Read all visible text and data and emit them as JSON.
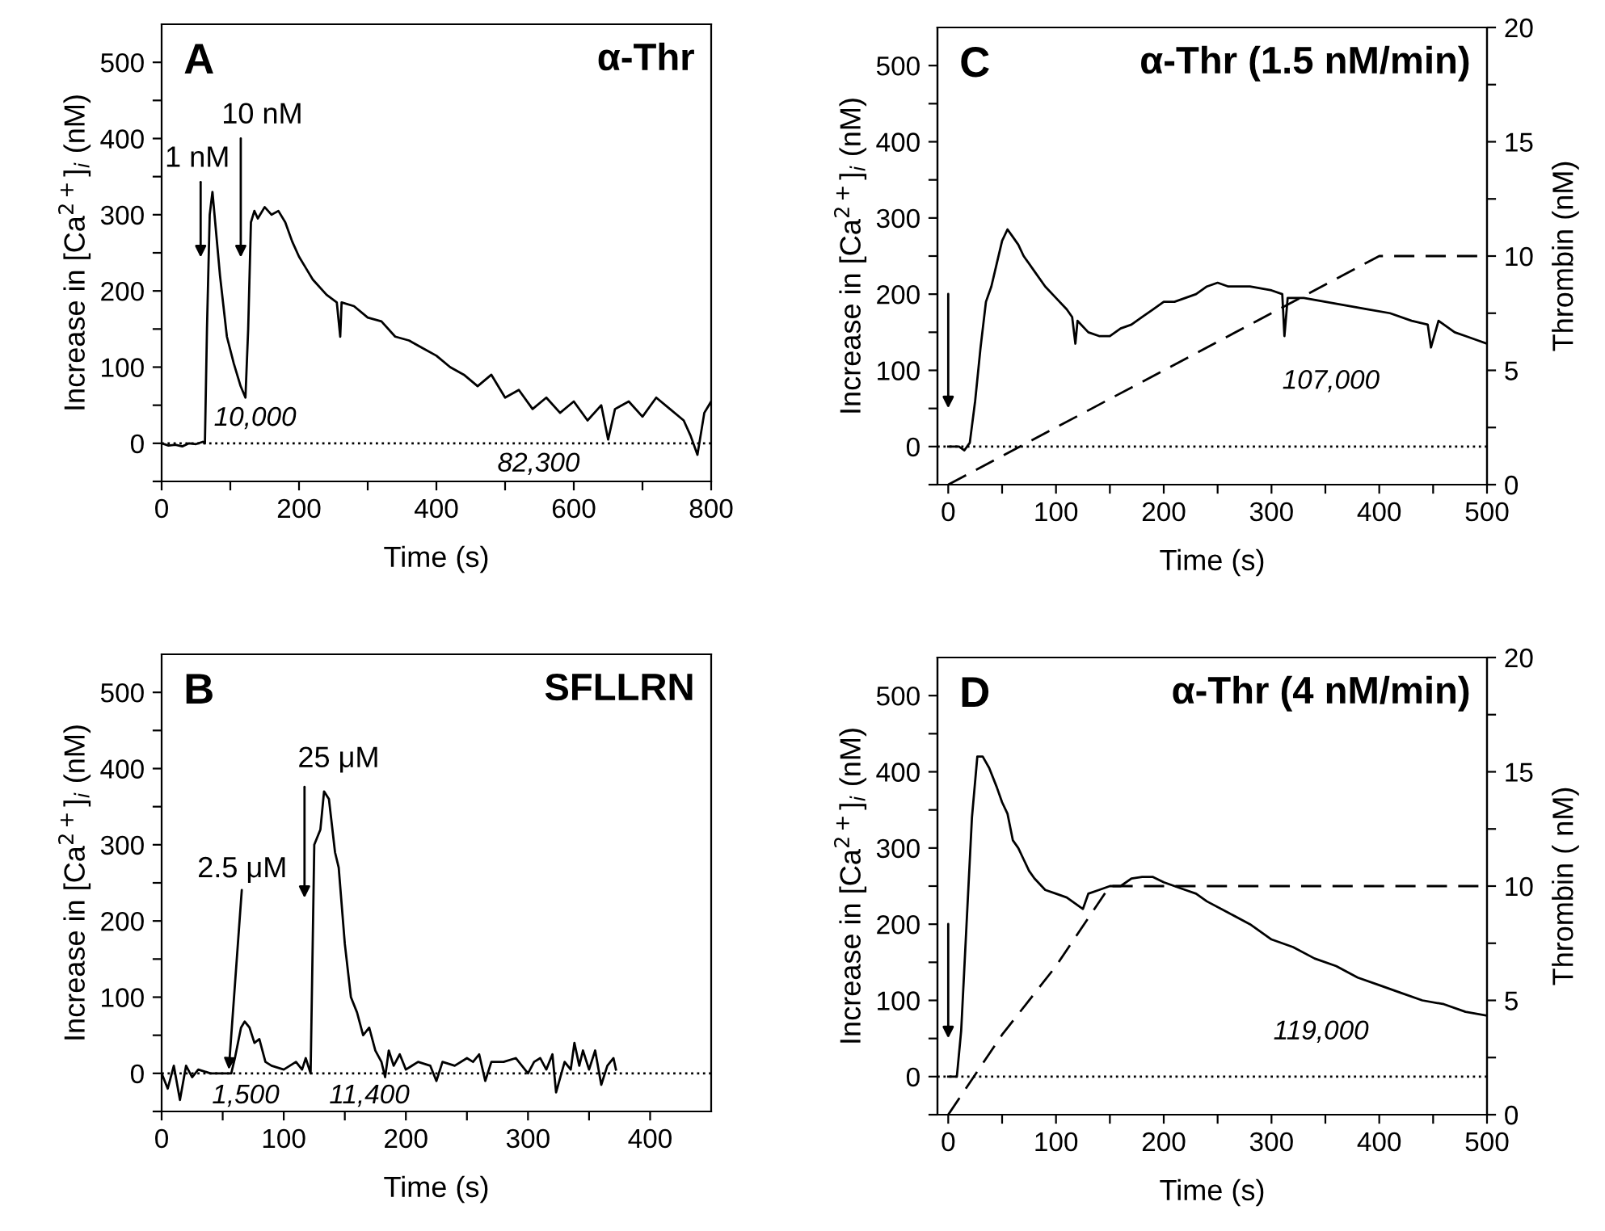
{
  "chart_data": [
    {
      "type": "line",
      "title": "α-Thr",
      "xlabel": "Time (s)",
      "ylabel": "Increase in [Ca$^{2+}$]$_{i}$ (nM)",
      "xlim": [
        0,
        800
      ],
      "xticks": [
        0,
        {
          "value": 100,
          "label": null
        },
        200,
        {
          "value": 300,
          "label": null
        },
        400,
        {
          "value": 500,
          "label": null
        },
        600,
        {
          "value": 700,
          "label": null
        },
        800
      ],
      "ylim": [
        -50,
        550
      ],
      "yticks": [
        {
          "value": -50,
          "label": null
        },
        0,
        {
          "value": 50,
          "label": null
        },
        100,
        {
          "value": 150,
          "label": null
        },
        200,
        {
          "value": 250,
          "label": null
        },
        300,
        {
          "value": 350,
          "label": null
        },
        400,
        {
          "value": 450,
          "label": null
        },
        500
      ],
      "grid": false,
      "ref_lines": [
        {
          "axis": "y",
          "value": 0,
          "line_style": "dotted",
          "color": "#000000"
        }
      ],
      "series": [
        {
          "color": "#000000",
          "line_style": "solid",
          "x": [
            0,
            10,
            20,
            30,
            40,
            50,
            60,
            63,
            66,
            70,
            74,
            78,
            85,
            95,
            105,
            115,
            122,
            126,
            130,
            135,
            140,
            150,
            160,
            170,
            180,
            190,
            200,
            210,
            220,
            240,
            255,
            260,
            262,
            280,
            300,
            320,
            340,
            360,
            380,
            400,
            420,
            440,
            460,
            480,
            500,
            520,
            540,
            560,
            580,
            600,
            620,
            640,
            650,
            660,
            680,
            700,
            720,
            740,
            760,
            770,
            780,
            790,
            800
          ],
          "values": [
            0,
            -3,
            -2,
            -4,
            0,
            -1,
            2,
            0,
            150,
            300,
            330,
            290,
            220,
            140,
            105,
            75,
            60,
            150,
            290,
            305,
            295,
            310,
            300,
            305,
            290,
            265,
            245,
            230,
            215,
            195,
            185,
            140,
            185,
            180,
            165,
            160,
            140,
            135,
            125,
            115,
            100,
            90,
            75,
            90,
            60,
            70,
            45,
            60,
            40,
            55,
            30,
            50,
            5,
            45,
            55,
            35,
            60,
            45,
            30,
            10,
            -15,
            40,
            55
          ]
        }
      ],
      "annotations": [
        "A",
        "1 nM",
        "10 nM",
        "10,000",
        "82,300"
      ]
    },
    {
      "type": "line",
      "title": "α-Thr (1.5 nM/min)",
      "xlabel": "Time (s)",
      "ylabel": "Increase in [Ca$^{2+}$]$_{i}$ (nM)",
      "y2label": "Thrombin (nM)",
      "xlim": [
        -10,
        500
      ],
      "xticks": [
        0,
        {
          "value": 50,
          "label": null
        },
        100,
        {
          "value": 150,
          "label": null
        },
        200,
        {
          "value": 250,
          "label": null
        },
        300,
        {
          "value": 350,
          "label": null
        },
        400,
        {
          "value": 450,
          "label": null
        },
        500
      ],
      "ylim": [
        -50,
        550
      ],
      "yticks": [
        {
          "value": -50,
          "label": null
        },
        0,
        {
          "value": 50,
          "label": null
        },
        100,
        {
          "value": 150,
          "label": null
        },
        200,
        {
          "value": 250,
          "label": null
        },
        300,
        {
          "value": 350,
          "label": null
        },
        400,
        {
          "value": 450,
          "label": null
        },
        500
      ],
      "y2lim": [
        0,
        20
      ],
      "y2ticks": [
        0,
        {
          "value": 2.5,
          "label": null
        },
        5,
        {
          "value": 7.5,
          "label": null
        },
        10,
        {
          "value": 12.5,
          "label": null
        },
        15,
        {
          "value": 17.5,
          "label": null
        },
        20
      ],
      "grid": false,
      "ref_lines": [
        {
          "axis": "y",
          "value": 0,
          "line_style": "dotted",
          "color": "#000000"
        }
      ],
      "series": [
        {
          "color": "#000000",
          "line_style": "solid",
          "x": [
            0,
            10,
            15,
            20,
            25,
            30,
            35,
            40,
            45,
            50,
            55,
            60,
            65,
            70,
            80,
            90,
            100,
            110,
            115,
            118,
            120,
            130,
            140,
            150,
            160,
            170,
            180,
            190,
            200,
            210,
            220,
            230,
            240,
            250,
            260,
            280,
            300,
            310,
            312,
            315,
            330,
            350,
            370,
            390,
            410,
            430,
            445,
            448,
            455,
            470,
            480,
            490,
            500
          ],
          "values": [
            0,
            0,
            -5,
            5,
            60,
            130,
            190,
            210,
            240,
            270,
            285,
            275,
            265,
            250,
            230,
            210,
            195,
            180,
            170,
            135,
            165,
            150,
            145,
            145,
            155,
            160,
            170,
            180,
            190,
            190,
            195,
            200,
            210,
            215,
            210,
            210,
            205,
            200,
            145,
            195,
            195,
            190,
            185,
            180,
            175,
            165,
            160,
            130,
            165,
            150,
            145,
            140,
            135
          ]
        },
        {
          "color": "#000000",
          "line_style": "dashed",
          "axis": "y2",
          "x": [
            0,
            400,
            500
          ],
          "values": [
            0,
            10,
            10
          ]
        }
      ],
      "annotations": [
        "C",
        "107,000"
      ]
    },
    {
      "type": "line",
      "title": "SFLLRN",
      "xlabel": "Time (s)",
      "ylabel": "Increase in [Ca$^{2+}$]$_{i}$ (nM)",
      "xlim": [
        0,
        450
      ],
      "xticks": [
        0,
        {
          "value": 50,
          "label": null
        },
        100,
        {
          "value": 150,
          "label": null
        },
        200,
        {
          "value": 250,
          "label": null
        },
        300,
        {
          "value": 350,
          "label": null
        },
        400
      ],
      "ylim": [
        -50,
        550
      ],
      "yticks": [
        {
          "value": -50,
          "label": null
        },
        0,
        {
          "value": 50,
          "label": null
        },
        100,
        {
          "value": 150,
          "label": null
        },
        200,
        {
          "value": 250,
          "label": null
        },
        300,
        {
          "value": 350,
          "label": null
        },
        400,
        {
          "value": 450,
          "label": null
        },
        500
      ],
      "grid": false,
      "ref_lines": [
        {
          "axis": "y",
          "value": 0,
          "line_style": "dotted",
          "color": "#000000"
        }
      ],
      "series": [
        {
          "color": "#000000",
          "line_style": "solid",
          "x": [
            0,
            5,
            10,
            15,
            20,
            25,
            30,
            40,
            50,
            57,
            60,
            65,
            68,
            72,
            76,
            80,
            85,
            90,
            100,
            110,
            115,
            118,
            122,
            125,
            130,
            133,
            137,
            142,
            145,
            150,
            155,
            160,
            165,
            170,
            175,
            180,
            183,
            186,
            190,
            195,
            200,
            210,
            220,
            225,
            230,
            240,
            250,
            255,
            260,
            265,
            270,
            280,
            290,
            300,
            305,
            310,
            315,
            320,
            323,
            330,
            335,
            338,
            342,
            345,
            350,
            355,
            360,
            365,
            370,
            372
          ],
          "values": [
            0,
            -20,
            10,
            -35,
            10,
            -5,
            5,
            0,
            0,
            0,
            20,
            60,
            68,
            60,
            40,
            45,
            15,
            10,
            5,
            15,
            5,
            20,
            0,
            300,
            320,
            370,
            360,
            290,
            270,
            170,
            100,
            80,
            50,
            60,
            30,
            15,
            -5,
            30,
            10,
            25,
            5,
            15,
            10,
            -10,
            15,
            10,
            20,
            15,
            25,
            -10,
            15,
            15,
            20,
            0,
            15,
            20,
            5,
            25,
            -25,
            15,
            5,
            40,
            10,
            30,
            5,
            30,
            -15,
            10,
            20,
            5
          ]
        }
      ],
      "annotations": [
        "B",
        {
          "text": "2.5 μM",
          "x": 55,
          "y": 5
        },
        "25 μM",
        "1,500",
        "11,400"
      ]
    },
    {
      "type": "line",
      "title": "α-Thr (4 nM/min)",
      "xlabel": "Time (s)",
      "ylabel": "Increase in [Ca$^{2+}$]$_{i}$ (nM)",
      "y2label": "Thrombin ( nM)",
      "xlim": [
        -10,
        500
      ],
      "xticks": [
        0,
        {
          "value": 50,
          "label": null
        },
        100,
        {
          "value": 150,
          "label": null
        },
        200,
        {
          "value": 250,
          "label": null
        },
        300,
        {
          "value": 350,
          "label": null
        },
        400,
        {
          "value": 450,
          "label": null
        },
        500
      ],
      "ylim": [
        -50,
        550
      ],
      "yticks": [
        {
          "value": -50,
          "label": null
        },
        0,
        {
          "value": 50,
          "label": null
        },
        100,
        {
          "value": 150,
          "label": null
        },
        200,
        {
          "value": 250,
          "label": null
        },
        300,
        {
          "value": 350,
          "label": null
        },
        400,
        {
          "value": 450,
          "label": null
        },
        500
      ],
      "y2lim": [
        0,
        20
      ],
      "y2ticks": [
        0,
        {
          "value": 2.5,
          "label": null
        },
        5,
        {
          "value": 7.5,
          "label": null
        },
        10,
        {
          "value": 12.5,
          "label": null
        },
        15,
        {
          "value": 17.5,
          "label": null
        },
        20
      ],
      "grid": false,
      "ref_lines": [
        {
          "axis": "y",
          "value": 0,
          "line_style": "dotted",
          "color": "#000000"
        }
      ],
      "series": [
        {
          "color": "#000000",
          "line_style": "solid",
          "x": [
            0,
            8,
            12,
            17,
            22,
            27,
            32,
            38,
            45,
            50,
            55,
            60,
            65,
            70,
            75,
            80,
            90,
            100,
            110,
            120,
            125,
            130,
            140,
            150,
            160,
            170,
            180,
            190,
            200,
            210,
            220,
            230,
            240,
            260,
            280,
            300,
            320,
            340,
            360,
            380,
            400,
            420,
            440,
            460,
            480,
            500
          ],
          "values": [
            0,
            0,
            60,
            200,
            340,
            420,
            420,
            405,
            380,
            360,
            345,
            310,
            300,
            285,
            270,
            260,
            245,
            240,
            235,
            225,
            220,
            240,
            245,
            250,
            250,
            260,
            262,
            262,
            255,
            250,
            245,
            240,
            230,
            215,
            200,
            180,
            170,
            155,
            145,
            130,
            120,
            110,
            100,
            95,
            85,
            80
          ]
        },
        {
          "color": "#000000",
          "line_style": "dashed",
          "axis": "y2",
          "x": [
            0,
            50,
            100,
            150,
            500
          ],
          "values": [
            0,
            3.5,
            6.5,
            10,
            10
          ]
        }
      ],
      "annotations": [
        "D",
        "119,000"
      ]
    }
  ]
}
